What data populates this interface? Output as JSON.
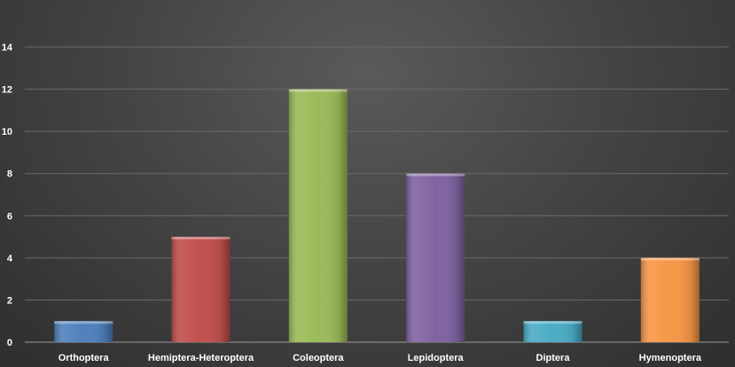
{
  "chart_data": {
    "type": "bar",
    "categories": [
      "Orthoptera",
      "Hemiptera-Heteroptera",
      "Coleoptera",
      "Lepidoptera",
      "Diptera",
      "Hymenoptera"
    ],
    "values": [
      1,
      5,
      12,
      8,
      1,
      4
    ],
    "colors": [
      "#4f81bd",
      "#c0504d",
      "#9bbb59",
      "#8064a2",
      "#4bacc6",
      "#f79646"
    ],
    "title": "",
    "xlabel": "",
    "ylabel": "",
    "ylim": [
      0,
      14
    ],
    "yticks": [
      "0",
      "2",
      "4",
      "6",
      "8",
      "10",
      "12",
      "14"
    ],
    "grid": true,
    "legend": "none"
  }
}
